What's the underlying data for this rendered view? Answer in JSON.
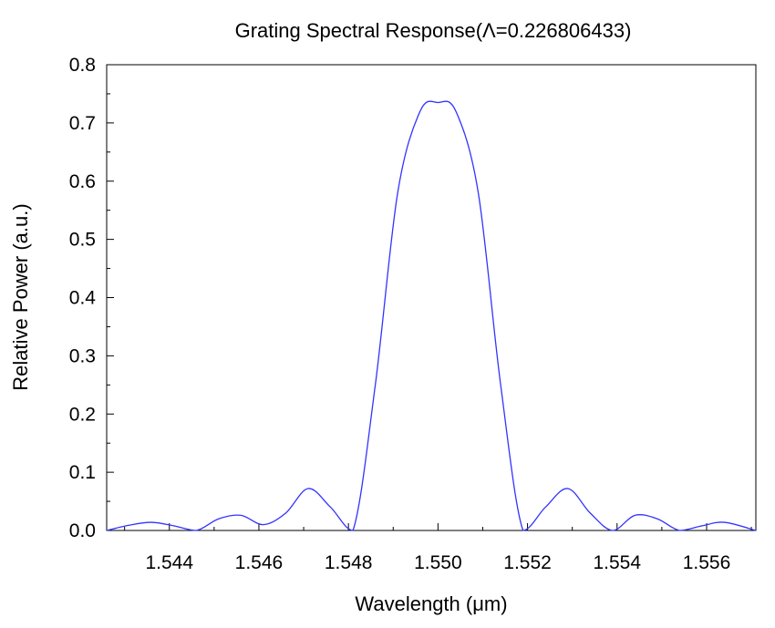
{
  "chart_data": {
    "type": "line",
    "title": "Grating Spectral Response(Λ=0.226806433)",
    "xlabel": "Wavelength (μm)",
    "ylabel": "Relative Power (a.u.)",
    "xlim": [
      1.5426,
      1.5571
    ],
    "ylim": [
      0,
      0.8
    ],
    "x_ticks": [
      "1.544",
      "1.546",
      "1.548",
      "1.550",
      "1.552",
      "1.554",
      "1.556"
    ],
    "x_tick_values": [
      1.544,
      1.546,
      1.548,
      1.55,
      1.552,
      1.554,
      1.556
    ],
    "y_ticks": [
      "0.0",
      "0.1",
      "0.2",
      "0.3",
      "0.4",
      "0.5",
      "0.6",
      "0.7",
      "0.8"
    ],
    "y_tick_values": [
      0,
      0.1,
      0.2,
      0.3,
      0.4,
      0.5,
      0.6,
      0.7,
      0.8
    ],
    "grid": false,
    "line_color": "#3333ff",
    "series": [
      {
        "x": [
          1.5426,
          1.5431,
          1.5436,
          1.5441,
          1.5446,
          1.5451,
          1.5456,
          1.5461,
          1.5466,
          1.5471,
          1.5476,
          1.5481,
          1.5486,
          1.5491,
          1.5496,
          1.55,
          1.5504,
          1.5509,
          1.5514,
          1.5519,
          1.5524,
          1.5529,
          1.5534,
          1.5539,
          1.5544,
          1.5549,
          1.5554,
          1.5559,
          1.5564,
          1.5571
        ],
        "y": [
          0.0,
          0.009,
          0.014,
          0.008,
          0.0,
          0.02,
          0.026,
          0.01,
          0.03,
          0.072,
          0.04,
          0.0,
          0.25,
          0.58,
          0.72,
          0.735,
          0.72,
          0.58,
          0.25,
          0.0,
          0.04,
          0.072,
          0.03,
          0.0,
          0.026,
          0.02,
          0.0,
          0.008,
          0.014,
          0.0
        ]
      }
    ]
  }
}
